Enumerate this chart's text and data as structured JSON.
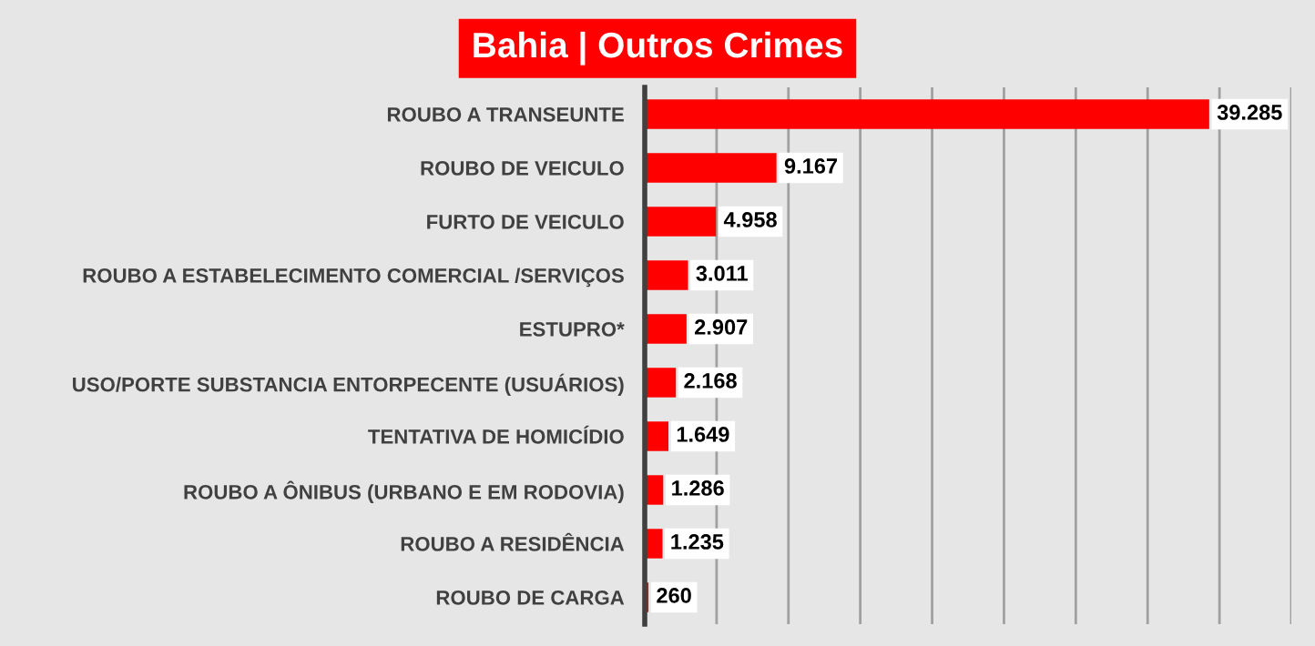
{
  "chart_data": {
    "type": "bar",
    "orientation": "horizontal",
    "title": "Bahia | Outros Crimes",
    "categories": [
      "ROUBO A TRANSEUNTE",
      "ROUBO DE VEICULO",
      "FURTO DE VEICULO",
      "ROUBO A ESTABELECIMENTO COMERCIAL /SERVIÇOS",
      "ESTUPRO*",
      "USO/PORTE SUBSTANCIA ENTORPECENTE (USUÁRIOS)",
      "TENTATIVA DE HOMICÍDIO",
      "ROUBO A ÔNIBUS (URBANO E EM RODOVIA)",
      "ROUBO A RESIDÊNCIA",
      "ROUBO DE CARGA"
    ],
    "values": [
      39285,
      9167,
      4958,
      3011,
      2907,
      2168,
      1649,
      1286,
      1235,
      260
    ],
    "value_labels": [
      "39.285",
      "9.167",
      "4.958",
      "3.011",
      "2.907",
      "2.168",
      "1.649",
      "1.286",
      "1.235",
      "260"
    ],
    "color": "#ff0000",
    "xlim": [
      0,
      45000
    ],
    "xticks": [
      {
        "value": 0,
        "label": null
      },
      {
        "value": 5000,
        "label": null
      },
      {
        "value": 10000,
        "label": null
      },
      {
        "value": 15000,
        "label": null
      },
      {
        "value": 20000,
        "label": null
      },
      {
        "value": 25000,
        "label": null
      },
      {
        "value": 30000,
        "label": null
      },
      {
        "value": 35000,
        "label": null
      },
      {
        "value": 40000,
        "label": null
      },
      {
        "value": 45000,
        "label": null
      }
    ],
    "grid": "x",
    "tick_labels": "y",
    "legend": false
  }
}
